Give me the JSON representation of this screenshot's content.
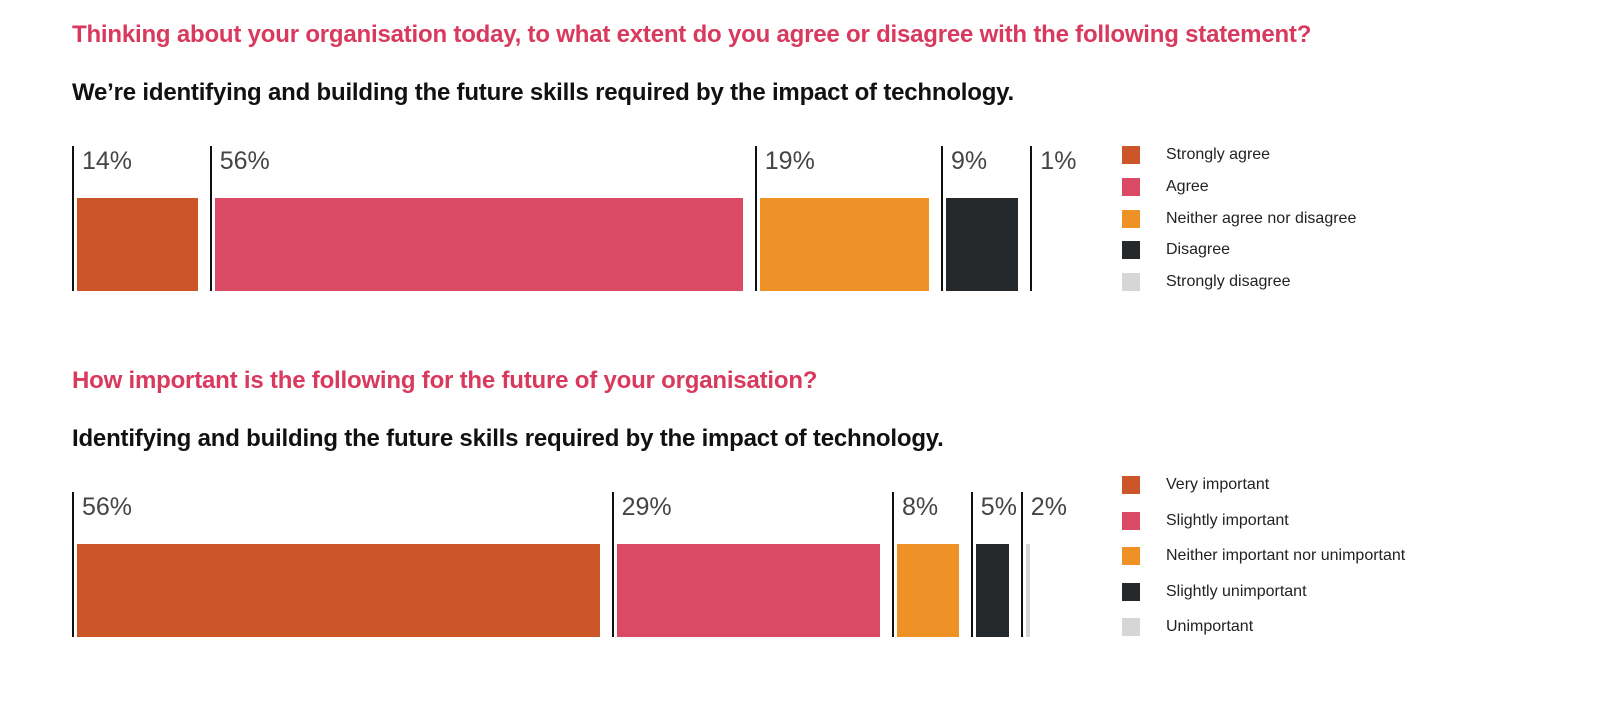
{
  "styles": {
    "heading_color": "#D8395D",
    "value_label_color": "#454545",
    "tick_color": "#101010",
    "legend_text_color": "#222222",
    "background": "#ffffff"
  },
  "chart_data": [
    {
      "type": "bar",
      "title": "Thinking about your organisation today, to what extent do you agree or disagree with the following statement?",
      "subtitle": "We’re identifying and building the future skills required by the impact of technology.",
      "categories": [
        "Strongly agree",
        "Agree",
        "Neither agree nor disagree",
        "Disagree",
        "Strongly disagree"
      ],
      "values": [
        14,
        56,
        19,
        9,
        1
      ],
      "value_labels": [
        "14%",
        "56%",
        "19%",
        "9%",
        "1%"
      ],
      "colors": [
        "#CC5627",
        "#DA4A64",
        "#EE9227",
        "#25292C",
        "#D6D6D6"
      ],
      "unit": "%",
      "orientation": "horizontal-proportional",
      "legend_position": "right",
      "grid": false
    },
    {
      "type": "bar",
      "title": "How important is the following for the future of your organisation?",
      "subtitle": "Identifying and building the future skills required by the impact of technology.",
      "categories": [
        "Very important",
        "Slightly important",
        "Neither important nor unimportant",
        "Slightly unimportant",
        "Unimportant"
      ],
      "values": [
        56,
        29,
        8,
        5,
        2
      ],
      "value_labels": [
        "56%",
        "29%",
        "8%",
        "5%",
        "2%"
      ],
      "colors": [
        "#CC5627",
        "#DA4A64",
        "#EE9227",
        "#25292C",
        "#D6D6D6"
      ],
      "unit": "%",
      "orientation": "horizontal-proportional",
      "legend_position": "right",
      "grid": false
    }
  ]
}
